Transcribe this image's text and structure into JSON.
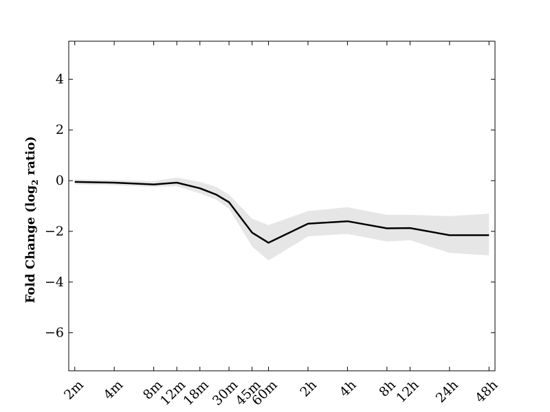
{
  "chart_data": {
    "type": "line",
    "title": "",
    "xlabel": "",
    "ylabel": "Fold Change (log",
    "ylabel_sub": "2",
    "ylabel_tail": " ratio)",
    "ylim": [
      -7.5,
      5.5
    ],
    "yticks": [
      4,
      2,
      0,
      -2,
      -4,
      -6
    ],
    "ytick_labels": [
      "4",
      "2",
      "0",
      "−2",
      "−4",
      "−6"
    ],
    "grid": false,
    "x_scale": "log",
    "x_tick_labels": [
      "2m",
      "4m",
      "8m",
      "12m",
      "18m",
      "30m",
      "45m",
      "60m",
      "2h",
      "4h",
      "8h",
      "12h",
      "24h",
      "48h"
    ],
    "x_minutes": [
      2,
      4,
      8,
      12,
      18,
      30,
      45,
      60,
      120,
      240,
      480,
      720,
      1440,
      2880
    ],
    "xlim_minutes": [
      1.8,
      3200
    ],
    "series": [
      {
        "x_minutes": [
          2,
          4,
          8,
          12,
          18,
          24,
          30,
          45,
          60,
          120,
          240,
          480,
          720,
          1440,
          2880
        ],
        "values": [
          -0.05,
          -0.08,
          -0.15,
          -0.08,
          -0.3,
          -0.55,
          -0.85,
          -2.05,
          -2.45,
          -1.7,
          -1.6,
          -1.88,
          -1.87,
          -2.15,
          -2.15
        ],
        "band_upper": [
          0.05,
          0.02,
          -0.02,
          0.12,
          -0.05,
          -0.25,
          -0.55,
          -1.5,
          -1.75,
          -1.2,
          -1.05,
          -1.35,
          -1.35,
          -1.4,
          -1.3
        ],
        "band_lower": [
          -0.15,
          -0.18,
          -0.25,
          -0.22,
          -0.5,
          -0.75,
          -1.1,
          -2.6,
          -3.15,
          -2.2,
          -2.1,
          -2.4,
          -2.35,
          -2.85,
          -2.95
        ],
        "color": "#000000",
        "band_color": "#e6e6e6"
      }
    ]
  }
}
